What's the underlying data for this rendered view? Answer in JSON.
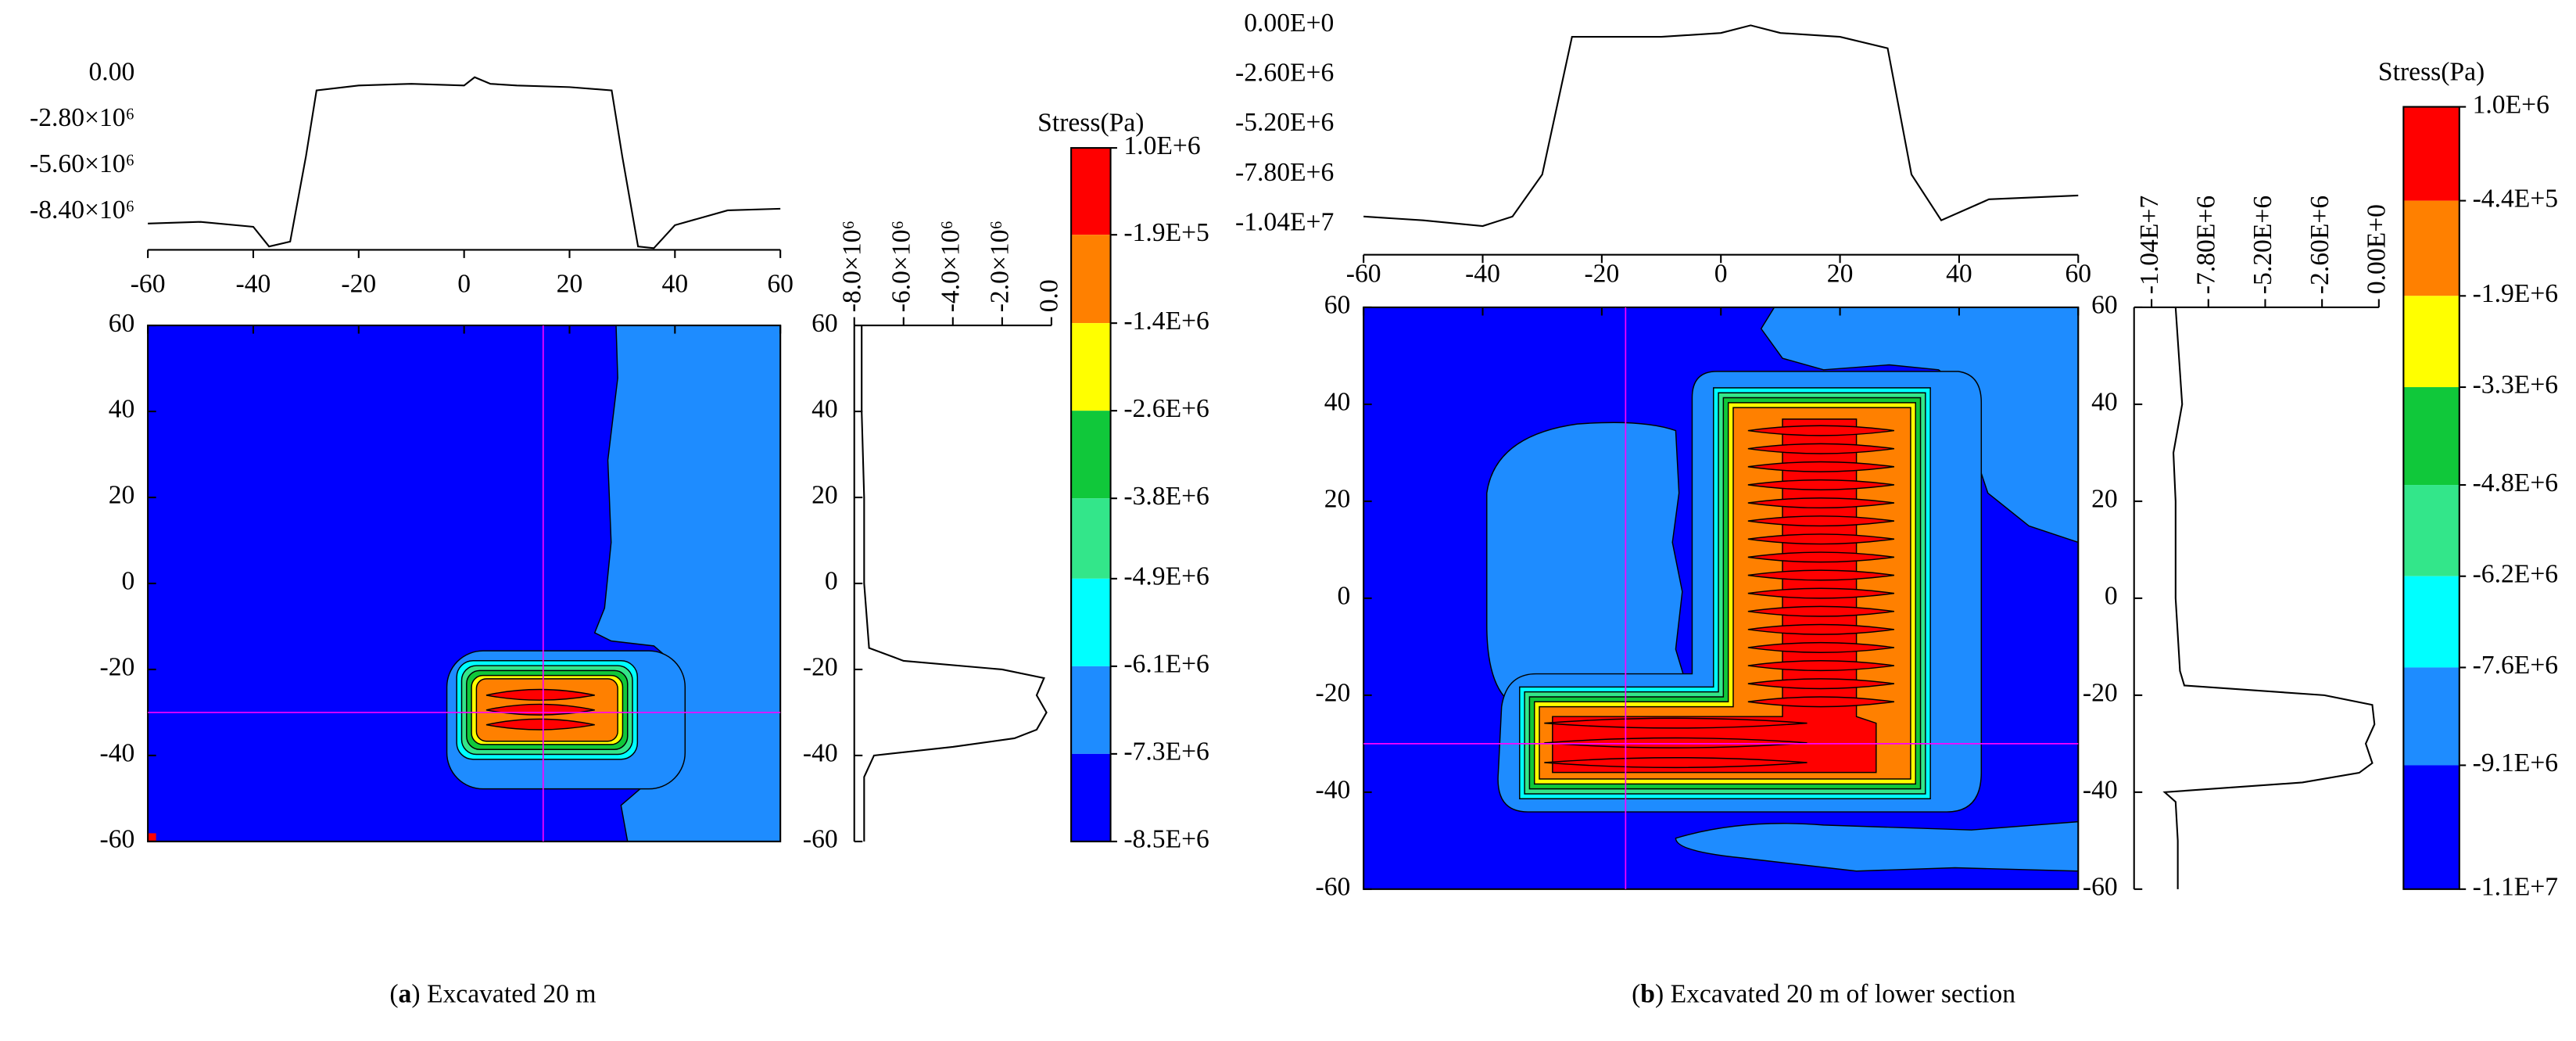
{
  "chart_data": [
    {
      "type": "contour",
      "caption": [
        "(",
        "a",
        ") Excavated 20 m"
      ],
      "xlim": [
        -60,
        60
      ],
      "xticks": [
        -60,
        -40,
        -20,
        0,
        20,
        40,
        60
      ],
      "ylim": [
        -60,
        60
      ],
      "yticks": [
        -60,
        -40,
        -20,
        0,
        20,
        40,
        60
      ],
      "crosshair": {
        "x": 15,
        "y": -30
      },
      "top_profile": {
        "x": [
          -60,
          -50,
          -40,
          -37,
          -33,
          -30,
          -28,
          -20,
          -10,
          0,
          2,
          5,
          10,
          20,
          28,
          30,
          33,
          36,
          40,
          50,
          60
        ],
        "values": [
          -9100000,
          -9000000,
          -9300000,
          -10500000,
          -10200000,
          -5000000,
          -1000000,
          -700000,
          -600000,
          -700000,
          -200000,
          -600000,
          -700000,
          -800000,
          -1000000,
          -5000000,
          -10500000,
          -10600000,
          -9200000,
          -8300000,
          -8200000
        ],
        "ylim": [
          -10700000,
          500000
        ],
        "yticks": [
          {
            "value": 0,
            "label": "0.00"
          },
          {
            "value": -2800000,
            "label": "-2.80×10⁶"
          },
          {
            "value": -5600000,
            "label": "-5.60×10⁶"
          },
          {
            "value": -8400000,
            "label": "-8.40×10⁶"
          }
        ]
      },
      "side_profile": {
        "y": [
          60,
          40,
          20,
          0,
          -15,
          -18,
          -20,
          -22,
          -26,
          -30,
          -34,
          -36,
          -38,
          -40,
          -45,
          -60
        ],
        "values": [
          -7700000,
          -7700000,
          -7600000,
          -7600000,
          -7400000,
          -6000000,
          -2000000,
          -300000,
          -600000,
          -200000,
          -600000,
          -1500000,
          -4000000,
          -7200000,
          -7600000,
          -7600000
        ],
        "xlim": [
          -8000000,
          0
        ],
        "xticks": [
          {
            "value": -8000000,
            "label": "-8.0×10⁶"
          },
          {
            "value": -6000000,
            "label": "-6.0×10⁶"
          },
          {
            "value": -4000000,
            "label": "-4.0×10⁶"
          },
          {
            "value": -2000000,
            "label": "-2.0×10⁶"
          },
          {
            "value": 0,
            "label": "0.0"
          }
        ]
      },
      "colorbar": {
        "title": "Stress(Pa)",
        "ticks": [
          {
            "value": 1000000,
            "label": "1.0E+6"
          },
          {
            "value": -190000,
            "label": "-1.9E+5"
          },
          {
            "value": -1400000,
            "label": "-1.4E+6"
          },
          {
            "value": -2600000,
            "label": "-2.6E+6"
          },
          {
            "value": -3800000,
            "label": "-3.8E+6"
          },
          {
            "value": -4900000,
            "label": "-4.9E+6"
          },
          {
            "value": -6100000,
            "label": "-6.1E+6"
          },
          {
            "value": -7300000,
            "label": "-7.3E+6"
          },
          {
            "value": -8500000,
            "label": "-8.5E+6"
          }
        ],
        "colors": [
          "#ff0000",
          "#ff8000",
          "#ffff00",
          "#10c83a",
          "#33e68a",
          "#00ffff",
          "#1e8cff",
          "#0000ff"
        ]
      }
    },
    {
      "type": "contour",
      "caption": [
        "(",
        "b",
        ") Excavated 20 m of lower section"
      ],
      "xlim": [
        -60,
        60
      ],
      "xticks": [
        -60,
        -40,
        -20,
        0,
        20,
        40,
        60
      ],
      "ylim": [
        -60,
        60
      ],
      "yticks": [
        -60,
        -40,
        -20,
        0,
        20,
        40,
        60
      ],
      "crosshair": {
        "x": -16,
        "y": -30
      },
      "top_profile": {
        "x": [
          -60,
          -50,
          -40,
          -35,
          -30,
          -25,
          -10,
          0,
          5,
          10,
          20,
          28,
          32,
          37,
          45,
          60
        ],
        "values": [
          -10000000,
          -10200000,
          -10500000,
          -10000000,
          -7800000,
          -600000,
          -600000,
          -400000,
          0,
          -400000,
          -600000,
          -1200000,
          -7800000,
          -10200000,
          -9100000,
          -8900000
        ],
        "ylim": [
          -12000000,
          500000
        ],
        "yticks": [
          {
            "value": 0,
            "label": "0.00E+0"
          },
          {
            "value": -2600000,
            "label": "-2.60E+6"
          },
          {
            "value": -5200000,
            "label": "-5.20E+6"
          },
          {
            "value": -7800000,
            "label": "-7.80E+6"
          },
          {
            "value": -10400000,
            "label": "-1.04E+7"
          }
        ]
      },
      "side_profile": {
        "y": [
          60,
          40,
          30,
          20,
          0,
          -15,
          -18,
          -20,
          -22,
          -26,
          -30,
          -34,
          -36,
          -38,
          -40,
          -42,
          -50,
          -60
        ],
        "values": [
          -9300000,
          -9000000,
          -9400000,
          -9300000,
          -9300000,
          -9100000,
          -8900000,
          -2500000,
          -300000,
          -200000,
          -600000,
          -300000,
          -900000,
          -3500000,
          -9800000,
          -9300000,
          -9200000,
          -9200000
        ],
        "xlim": [
          -11200000,
          0
        ],
        "xticks": [
          {
            "value": -10400000,
            "label": "-1.04E+7"
          },
          {
            "value": -7800000,
            "label": "-7.80E+6"
          },
          {
            "value": -5200000,
            "label": "-5.20E+6"
          },
          {
            "value": -2600000,
            "label": "-2.60E+6"
          },
          {
            "value": 0,
            "label": "0.00E+0"
          }
        ]
      },
      "colorbar": {
        "title": "Stress(Pa)",
        "ticks": [
          {
            "value": 1000000,
            "label": "1.0E+6"
          },
          {
            "value": -440000,
            "label": "-4.4E+5"
          },
          {
            "value": -1900000,
            "label": "-1.9E+6"
          },
          {
            "value": -3300000,
            "label": "-3.3E+6"
          },
          {
            "value": -4800000,
            "label": "-4.8E+6"
          },
          {
            "value": -6200000,
            "label": "-6.2E+6"
          },
          {
            "value": -7600000,
            "label": "-7.6E+6"
          },
          {
            "value": -9100000,
            "label": "-9.1E+6"
          },
          {
            "value": -11000000,
            "label": "-1.1E+7"
          }
        ],
        "colors": [
          "#ff0000",
          "#ff8000",
          "#ffff00",
          "#10c83a",
          "#33e68a",
          "#00ffff",
          "#1e8cff",
          "#0000ff"
        ]
      }
    }
  ]
}
